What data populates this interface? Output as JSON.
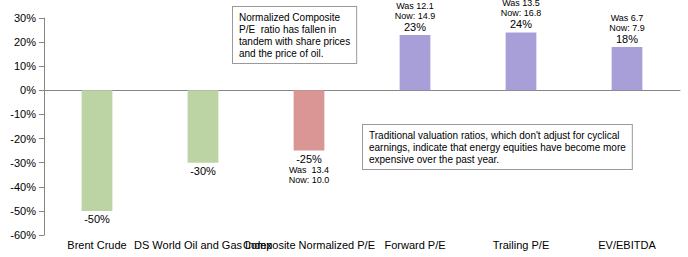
{
  "chart_data": {
    "type": "bar",
    "categories": [
      "Brent Crude",
      "DS World Oil and Gas Index",
      "Composite Normalized P/E",
      "Forward P/E",
      "Trailing P/E",
      "EV/EBITDA"
    ],
    "values": [
      -50,
      -30,
      -25,
      23,
      24,
      18
    ],
    "value_labels": [
      "-50%",
      "-30%",
      "-25%",
      "23%",
      "24%",
      "18%"
    ],
    "colors": [
      "#bcd4a4",
      "#bcd4a4",
      "#d99694",
      "#a99fd8",
      "#a99fd8",
      "#a99fd8"
    ],
    "ylim": [
      -60,
      30
    ],
    "yticks": [
      {
        "value": -60,
        "label": "-60%"
      },
      {
        "value": -50,
        "label": "-50%"
      },
      {
        "value": -40,
        "label": "-40%"
      },
      {
        "value": -30,
        "label": "-30%"
      },
      {
        "value": -20,
        "label": "-20%"
      },
      {
        "value": -10,
        "label": "-10%"
      },
      {
        "value": 0,
        "label": "0%"
      },
      {
        "value": 10,
        "label": "10%"
      },
      {
        "value": 20,
        "label": "20%"
      },
      {
        "value": 30,
        "label": "30%"
      }
    ],
    "grid": false,
    "data_labels": true,
    "annotations": [
      {
        "category": "Composite Normalized P/E",
        "text": "Was  13.4\nNow: 10.0"
      },
      {
        "category": "Forward P/E",
        "text": "Was 12.1\nNow: 14.9"
      },
      {
        "category": "Trailing P/E",
        "text": "Was 13.5\nNow: 16.8"
      },
      {
        "category": "EV/EBITDA",
        "text": "Was 6.7\nNow: 7.9"
      }
    ],
    "notes": [
      "Normalized Composite\nP/E  ratio has fallen in\ntandem with share prices\nand the price of oil.",
      "Traditional valuation ratios, which don't adjust for cyclical\nearnings, indicate that energy equities have become more\nexpensive over the past year."
    ]
  }
}
